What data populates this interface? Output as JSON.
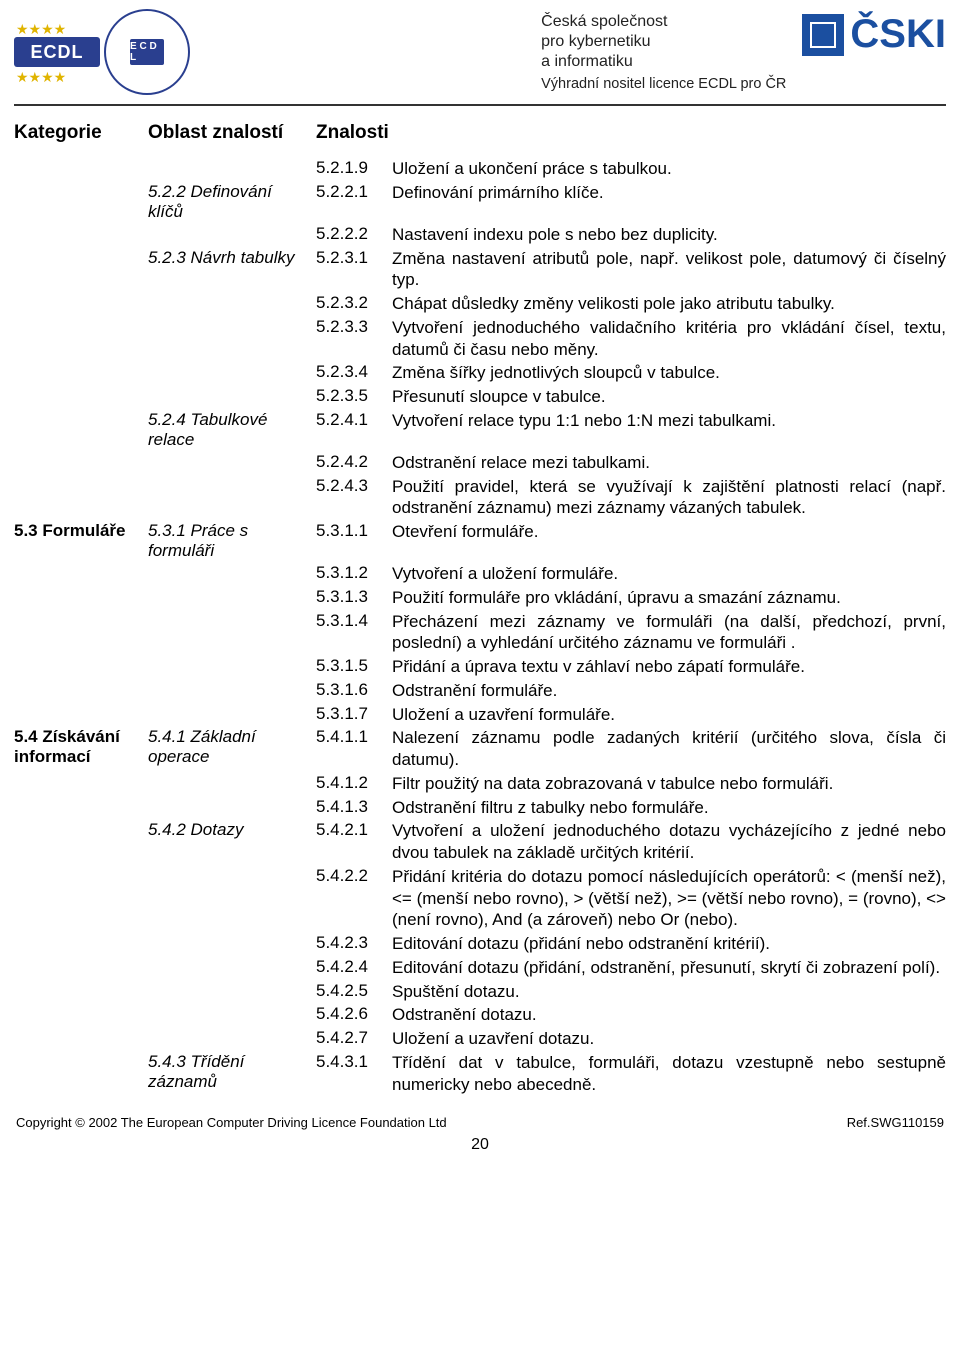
{
  "header": {
    "org_line1": "Česká společnost",
    "org_line2": "pro kybernetiku",
    "org_line3": "a informatiku",
    "tagline": "Výhradní nositel licence ECDL pro ČR",
    "cski": "ČSKI",
    "ecdl": "ECDL",
    "ecdl_inner": "E C D L"
  },
  "cols": {
    "c1": "Kategorie",
    "c2": "Oblast znalostí",
    "c3": "Znalosti"
  },
  "rows": [
    {
      "cat": "",
      "area": "",
      "num": "5.2.1.9",
      "desc": "Uložení a ukončení práce s tabulkou."
    },
    {
      "cat": "",
      "area": "5.2.2 Definování klíčů",
      "num": "5.2.2.1",
      "desc": "Definování primárního klíče."
    },
    {
      "cat": "",
      "area": "",
      "num": "5.2.2.2",
      "desc": "Nastavení indexu pole s nebo bez duplicity."
    },
    {
      "cat": "",
      "area": "5.2.3 Návrh tabulky",
      "num": "5.2.3.1",
      "desc": "Změna nastavení atributů pole, např. velikost pole, datumový či číselný typ."
    },
    {
      "cat": "",
      "area": "",
      "num": "5.2.3.2",
      "desc": "Chápat důsledky změny velikosti pole jako atributu tabulky."
    },
    {
      "cat": "",
      "area": "",
      "num": "5.2.3.3",
      "desc": "Vytvoření jednoduchého validačního kritéria pro vkládání čísel, textu, datumů či času nebo měny."
    },
    {
      "cat": "",
      "area": "",
      "num": "5.2.3.4",
      "desc": "Změna šířky jednotlivých sloupců v tabulce."
    },
    {
      "cat": "",
      "area": "",
      "num": "5.2.3.5",
      "desc": "Přesunutí sloupce v tabulce."
    },
    {
      "cat": "",
      "area": "5.2.4 Tabulkové relace",
      "num": "5.2.4.1",
      "desc": "Vytvoření relace typu 1:1 nebo 1:N mezi tabulkami."
    },
    {
      "cat": "",
      "area": "",
      "num": "5.2.4.2",
      "desc": "Odstranění relace mezi tabulkami."
    },
    {
      "cat": "",
      "area": "",
      "num": "5.2.4.3",
      "desc": "Použití pravidel, která se využívají k zajištění platnosti relací (např. odstranění záznamu) mezi záznamy vázaných tabulek."
    },
    {
      "cat": "5.3 Formuláře",
      "area": "5.3.1 Práce s formuláři",
      "num": "5.3.1.1",
      "desc": "Otevření formuláře."
    },
    {
      "cat": "",
      "area": "",
      "num": "5.3.1.2",
      "desc": "Vytvoření a uložení formuláře."
    },
    {
      "cat": "",
      "area": "",
      "num": "5.3.1.3",
      "desc": "Použití formuláře pro vkládání, úpravu a smazání záznamu."
    },
    {
      "cat": "",
      "area": "",
      "num": "5.3.1.4",
      "desc": "Přecházení mezi záznamy ve formuláři (na další, předchozí, první, poslední) a vyhledání určitého záznamu ve formuláři ."
    },
    {
      "cat": "",
      "area": "",
      "num": "5.3.1.5",
      "desc": "Přidání a úprava textu v záhlaví nebo zápatí formuláře."
    },
    {
      "cat": "",
      "area": "",
      "num": "5.3.1.6",
      "desc": "Odstranění formuláře."
    },
    {
      "cat": "",
      "area": "",
      "num": "5.3.1.7",
      "desc": "Uložení a uzavření formuláře."
    },
    {
      "cat": "5.4 Získávání informací",
      "area": "5.4.1 Základní operace",
      "num": "5.4.1.1",
      "desc": "Nalezení záznamu podle zadaných kritérií (určitého slova, čísla či datumu)."
    },
    {
      "cat": "",
      "area": "",
      "num": "5.4.1.2",
      "desc": "Filtr použitý na data zobrazovaná v tabulce nebo formuláři."
    },
    {
      "cat": "",
      "area": "",
      "num": "5.4.1.3",
      "desc": "Odstranění filtru z tabulky nebo formuláře."
    },
    {
      "cat": "",
      "area": "5.4.2 Dotazy",
      "num": "5.4.2.1",
      "desc": "Vytvoření a uložení jednoduchého dotazu vycházejícího z jedné nebo dvou tabulek na základě určitých kritérií."
    },
    {
      "cat": "",
      "area": "",
      "num": "5.4.2.2",
      "desc": "Přidání kritéria do dotazu pomocí následujících operátorů: < (menší než), <= (menší nebo rovno), > (větší než), >= (větší nebo rovno), = (rovno), <> (není rovno), And (a zároveň) nebo Or (nebo)."
    },
    {
      "cat": "",
      "area": "",
      "num": "5.4.2.3",
      "desc": "Editování dotazu (přidání nebo odstranění kritérií)."
    },
    {
      "cat": "",
      "area": "",
      "num": "5.4.2.4",
      "desc": "Editování dotazu (přidání, odstranění, přesunutí, skrytí či zobrazení polí)."
    },
    {
      "cat": "",
      "area": "",
      "num": "5.4.2.5",
      "desc": "Spuštění dotazu."
    },
    {
      "cat": "",
      "area": "",
      "num": "5.4.2.6",
      "desc": "Odstranění dotazu."
    },
    {
      "cat": "",
      "area": "",
      "num": "5.4.2.7",
      "desc": "Uložení a uzavření dotazu."
    },
    {
      "cat": "",
      "area": "5.4.3 Třídění záznamů",
      "num": "5.4.3.1",
      "desc": "Třídění dat v tabulce, formuláři, dotazu vzestupně nebo sestupně numericky nebo abecedně."
    }
  ],
  "footer": {
    "left": "Copyright © 2002 The European Computer Driving Licence Foundation Ltd",
    "right": "Ref.SWG110159",
    "page": "20"
  }
}
